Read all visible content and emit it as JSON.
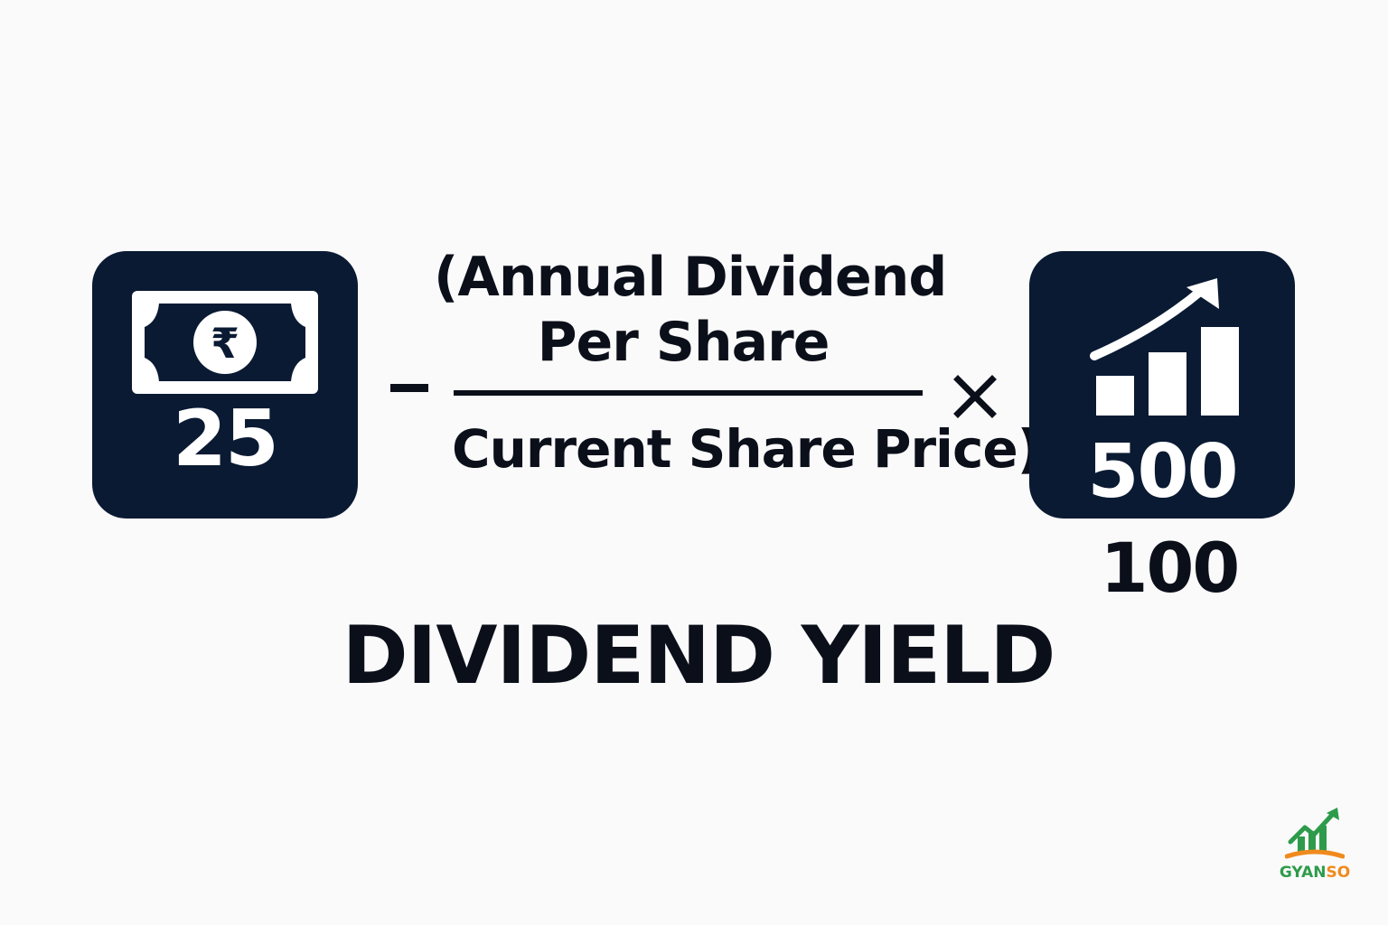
{
  "formula": {
    "left_value": "25",
    "minus_symbol": "−",
    "numerator_line1": "(Annual Dividend",
    "numerator_line2": "Per Share",
    "denominator": "Current Share Price)",
    "multiply_symbol": "×",
    "right_value": "500",
    "below_right_value": "100"
  },
  "caption": "DIVIDEND YIELD",
  "brand": {
    "name_green": "GYAN",
    "name_orange": "SO"
  },
  "colors": {
    "tile_background": "#0a1a33",
    "text": "#0b0f1a",
    "brand_green": "#2e9b4b",
    "brand_orange": "#f08a1c"
  },
  "icons": {
    "left_tile": "rupee-banknote-icon",
    "right_tile": "growth-bar-chart-icon"
  }
}
